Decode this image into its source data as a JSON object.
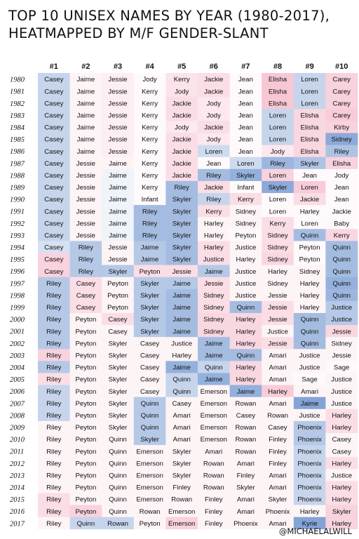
{
  "title_line1": "TOP 10 UNISEX NAMES BY YEAR (1980-2017),",
  "title_line2": "HEATMAPPED BY M/F GENDER-SLANT",
  "credit": "@MICHAELALWILL",
  "colors": {
    "male": "#5b86c9",
    "female": "#ee8ea9",
    "neutral": "#ffffff"
  },
  "chart_data": {
    "type": "heatmap",
    "columns": [
      "#1",
      "#2",
      "#3",
      "#4",
      "#5",
      "#6",
      "#7",
      "#8",
      "#9",
      "#10"
    ],
    "rows": [
      "1980",
      "1981",
      "1982",
      "1983",
      "1984",
      "1985",
      "1986",
      "1987",
      "1988",
      "1989",
      "1990",
      "1991",
      "1992",
      "1993",
      "1994",
      "1995",
      "1996",
      "1997",
      "1998",
      "1999",
      "2000",
      "2001",
      "2002",
      "2003",
      "2004",
      "2005",
      "2006",
      "2007",
      "2008",
      "2009",
      "2010",
      "2011",
      "2012",
      "2013",
      "2014",
      "2015",
      "2016",
      "2017"
    ],
    "cells": [
      [
        "Casey",
        "Jaime",
        "Jessie",
        "Jody",
        "Kerry",
        "Jackie",
        "Jean",
        "Elisha",
        "Loren",
        "Carey"
      ],
      [
        "Casey",
        "Jaime",
        "Jessie",
        "Kerry",
        "Jody",
        "Jackie",
        "Jean",
        "Elisha",
        "Loren",
        "Carey"
      ],
      [
        "Casey",
        "Jaime",
        "Jessie",
        "Kerry",
        "Jackie",
        "Jody",
        "Jean",
        "Elisha",
        "Loren",
        "Carey"
      ],
      [
        "Casey",
        "Jaime",
        "Jessie",
        "Kerry",
        "Jackie",
        "Jody",
        "Jean",
        "Loren",
        "Elisha",
        "Carey"
      ],
      [
        "Casey",
        "Jaime",
        "Jessie",
        "Kerry",
        "Jody",
        "Jackie",
        "Jean",
        "Loren",
        "Elisha",
        "Kirby"
      ],
      [
        "Casey",
        "Jaime",
        "Jessie",
        "Kerry",
        "Jackie",
        "Jody",
        "Jean",
        "Loren",
        "Elisha",
        "Sidney"
      ],
      [
        "Casey",
        "Jaime",
        "Jessie",
        "Kerry",
        "Jackie",
        "Loren",
        "Jean",
        "Jody",
        "Elisha",
        "Riley"
      ],
      [
        "Casey",
        "Jessie",
        "Jaime",
        "Kerry",
        "Jackie",
        "Jean",
        "Loren",
        "Riley",
        "Skyler",
        "Elisha"
      ],
      [
        "Casey",
        "Jessie",
        "Jaime",
        "Kerry",
        "Jackie",
        "Riley",
        "Skyler",
        "Loren",
        "Jean",
        "Jody"
      ],
      [
        "Casey",
        "Jessie",
        "Jaime",
        "Kerry",
        "Riley",
        "Jackie",
        "Infant",
        "Skyler",
        "Loren",
        "Jean"
      ],
      [
        "Casey",
        "Jessie",
        "Jaime",
        "Infant",
        "Skyler",
        "Riley",
        "Kerry",
        "Loren",
        "Jackie",
        "Jean"
      ],
      [
        "Casey",
        "Jessie",
        "Jaime",
        "Riley",
        "Skyler",
        "Kerry",
        "Sidney",
        "Loren",
        "Harley",
        "Jackie"
      ],
      [
        "Casey",
        "Jessie",
        "Jaime",
        "Riley",
        "Skyler",
        "Harley",
        "Sidney",
        "Kerry",
        "Loren",
        "Baby"
      ],
      [
        "Casey",
        "Jessie",
        "Jaime",
        "Riley",
        "Skyler",
        "Harley",
        "Peyton",
        "Sidney",
        "Quinn",
        "Kerry"
      ],
      [
        "Casey",
        "Riley",
        "Jessie",
        "Jaime",
        "Skyler",
        "Harley",
        "Justice",
        "Sidney",
        "Peyton",
        "Quinn"
      ],
      [
        "Casey",
        "Riley",
        "Jessie",
        "Jaime",
        "Skyler",
        "Justice",
        "Harley",
        "Sidney",
        "Peyton",
        "Quinn"
      ],
      [
        "Casey",
        "Riley",
        "Skyler",
        "Peyton",
        "Jessie",
        "Jaime",
        "Justice",
        "Harley",
        "Sidney",
        "Quinn"
      ],
      [
        "Riley",
        "Casey",
        "Peyton",
        "Skyler",
        "Jaime",
        "Jessie",
        "Justice",
        "Sidney",
        "Harley",
        "Quinn"
      ],
      [
        "Riley",
        "Casey",
        "Peyton",
        "Skyler",
        "Jaime",
        "Sidney",
        "Justice",
        "Jessie",
        "Harley",
        "Quinn"
      ],
      [
        "Riley",
        "Casey",
        "Peyton",
        "Skyler",
        "Jaime",
        "Sidney",
        "Quinn",
        "Jessie",
        "Harley",
        "Justice"
      ],
      [
        "Riley",
        "Peyton",
        "Casey",
        "Skyler",
        "Jaime",
        "Sidney",
        "Harley",
        "Jessie",
        "Quinn",
        "Justice"
      ],
      [
        "Riley",
        "Peyton",
        "Casey",
        "Skyler",
        "Jaime",
        "Sidney",
        "Harley",
        "Justice",
        "Quinn",
        "Jessie"
      ],
      [
        "Riley",
        "Peyton",
        "Skyler",
        "Casey",
        "Justice",
        "Jaime",
        "Harley",
        "Jessie",
        "Quinn",
        "Sidney"
      ],
      [
        "Riley",
        "Peyton",
        "Skyler",
        "Casey",
        "Harley",
        "Jaime",
        "Quinn",
        "Amari",
        "Justice",
        "Jessie"
      ],
      [
        "Riley",
        "Peyton",
        "Skyler",
        "Casey",
        "Jaime",
        "Quinn",
        "Harley",
        "Amari",
        "Justice",
        "Sage"
      ],
      [
        "Riley",
        "Peyton",
        "Skyler",
        "Casey",
        "Quinn",
        "Jaime",
        "Harley",
        "Amari",
        "Sage",
        "Justice"
      ],
      [
        "Riley",
        "Peyton",
        "Skyler",
        "Casey",
        "Quinn",
        "Emerson",
        "Jaime",
        "Harley",
        "Amari",
        "Justice"
      ],
      [
        "Riley",
        "Peyton",
        "Skyler",
        "Quinn",
        "Casey",
        "Emerson",
        "Rowan",
        "Amari",
        "Jaime",
        "Justice"
      ],
      [
        "Riley",
        "Peyton",
        "Skyler",
        "Quinn",
        "Amari",
        "Emerson",
        "Casey",
        "Rowan",
        "Justice",
        "Harley"
      ],
      [
        "Riley",
        "Peyton",
        "Skyler",
        "Quinn",
        "Amari",
        "Emerson",
        "Rowan",
        "Casey",
        "Phoenix",
        "Harley"
      ],
      [
        "Riley",
        "Peyton",
        "Quinn",
        "Skyler",
        "Amari",
        "Emerson",
        "Rowan",
        "Finley",
        "Phoenix",
        "Casey"
      ],
      [
        "Riley",
        "Peyton",
        "Quinn",
        "Emerson",
        "Skyler",
        "Amari",
        "Rowan",
        "Finley",
        "Phoenix",
        "Casey"
      ],
      [
        "Riley",
        "Peyton",
        "Quinn",
        "Emerson",
        "Skyler",
        "Rowan",
        "Amari",
        "Finley",
        "Phoenix",
        "Harley"
      ],
      [
        "Riley",
        "Peyton",
        "Quinn",
        "Emerson",
        "Skyler",
        "Rowan",
        "Finley",
        "Amari",
        "Phoenix",
        "Justice"
      ],
      [
        "Riley",
        "Peyton",
        "Quinn",
        "Emerson",
        "Finley",
        "Rowan",
        "Skyler",
        "Amari",
        "Phoenix",
        "Harley"
      ],
      [
        "Riley",
        "Peyton",
        "Quinn",
        "Emerson",
        "Rowan",
        "Finley",
        "Amari",
        "Skyler",
        "Phoenix",
        "Harley"
      ],
      [
        "Riley",
        "Peyton",
        "Quinn",
        "Rowan",
        "Emerson",
        "Finley",
        "Amari",
        "Phoenix",
        "Harley",
        "Skyler"
      ],
      [
        "Riley",
        "Quinn",
        "Rowan",
        "Peyton",
        "Emerson",
        "Finley",
        "Phoenix",
        "Amari",
        "Kyrie",
        "Harley"
      ]
    ],
    "slant": [
      [
        -0.35,
        0.1,
        0.15,
        0.05,
        0.25,
        0.3,
        0.05,
        0.5,
        -0.35,
        0.4
      ],
      [
        -0.35,
        0.1,
        0.15,
        0.05,
        0.25,
        0.3,
        0.05,
        0.5,
        -0.35,
        0.4
      ],
      [
        -0.35,
        0.1,
        0.15,
        0.05,
        0.3,
        0.2,
        0.05,
        0.5,
        -0.35,
        0.4
      ],
      [
        -0.35,
        0.1,
        0.15,
        0.05,
        0.3,
        0.2,
        0.05,
        -0.35,
        0.35,
        0.45
      ],
      [
        -0.35,
        0.1,
        0.15,
        0.05,
        0.2,
        0.3,
        0.05,
        -0.35,
        0.35,
        0.4
      ],
      [
        -0.35,
        0.1,
        0.15,
        0.05,
        0.3,
        0.2,
        0.05,
        -0.35,
        0.35,
        -0.7
      ],
      [
        -0.35,
        0.1,
        0.15,
        0.05,
        0.3,
        -0.3,
        0.05,
        0.2,
        0.35,
        -0.5
      ],
      [
        -0.35,
        0.1,
        0.1,
        0.05,
        0.3,
        0.05,
        -0.3,
        -0.6,
        -0.5,
        0.4
      ],
      [
        -0.35,
        0.1,
        -0.1,
        0.05,
        0.3,
        -0.55,
        -0.65,
        0.4,
        0.05,
        0.05
      ],
      [
        -0.35,
        0.1,
        -0.1,
        0.05,
        -0.55,
        0.3,
        0.05,
        -0.7,
        0.45,
        0.05
      ],
      [
        -0.35,
        0.1,
        -0.1,
        0.05,
        -0.55,
        -0.35,
        0.3,
        0.05,
        0.3,
        0.05
      ],
      [
        -0.35,
        0.1,
        -0.1,
        -0.55,
        -0.55,
        0.3,
        0.1,
        0.05,
        0.05,
        0.05
      ],
      [
        -0.35,
        0.1,
        -0.1,
        -0.55,
        -0.55,
        0.1,
        0.1,
        0.3,
        0.05,
        0.05
      ],
      [
        -0.35,
        0.1,
        -0.1,
        -0.55,
        -0.55,
        0.1,
        0.05,
        0.3,
        -0.55,
        0.35
      ],
      [
        -0.25,
        -0.45,
        0.1,
        -0.45,
        -0.55,
        0.3,
        0.1,
        0.3,
        0.05,
        -0.55
      ],
      [
        0.4,
        -0.45,
        0.1,
        -0.45,
        -0.55,
        0.3,
        0.1,
        0.35,
        0.05,
        -0.55
      ],
      [
        0.4,
        -0.45,
        -0.45,
        0.3,
        0.3,
        -0.45,
        0.1,
        0.1,
        0.1,
        -0.55
      ],
      [
        -0.45,
        0.3,
        0.1,
        -0.45,
        -0.45,
        0.3,
        0.1,
        0.1,
        0.1,
        -0.65
      ],
      [
        -0.45,
        0.3,
        0.1,
        -0.45,
        -0.55,
        0.3,
        0.1,
        0.1,
        0.1,
        -0.6
      ],
      [
        -0.45,
        0.3,
        0.1,
        -0.45,
        -0.55,
        0.3,
        -0.55,
        0.3,
        0.1,
        -0.45
      ],
      [
        -0.45,
        0.1,
        0.3,
        -0.45,
        -0.55,
        0.35,
        0.35,
        0.3,
        -0.55,
        -0.45
      ],
      [
        -0.45,
        0.1,
        0.1,
        -0.45,
        -0.55,
        0.35,
        0.35,
        0.1,
        -0.55,
        0.35
      ],
      [
        -0.45,
        0.1,
        0.1,
        0.1,
        0.1,
        -0.55,
        0.35,
        0.3,
        -0.55,
        0.1
      ],
      [
        0.4,
        0.1,
        0.1,
        0.1,
        0.1,
        -0.55,
        -0.55,
        0.1,
        0.1,
        0.1
      ],
      [
        -0.45,
        0.1,
        0.1,
        0.1,
        -0.65,
        -0.35,
        0.35,
        0.1,
        0.1,
        0.05
      ],
      [
        0.3,
        0.1,
        0.1,
        0.1,
        -0.35,
        -0.65,
        0.35,
        0.1,
        0.05,
        0.1
      ],
      [
        -0.35,
        0.1,
        0.1,
        0.1,
        -0.35,
        0.1,
        -0.65,
        0.45,
        0.1,
        0.1
      ],
      [
        -0.35,
        0.1,
        0.1,
        -0.45,
        0.1,
        0.1,
        0.1,
        0.1,
        -0.75,
        0.1
      ],
      [
        -0.35,
        0.1,
        0.1,
        -0.45,
        0.1,
        0.1,
        0.1,
        0.1,
        0.1,
        0.3
      ],
      [
        0.1,
        0.1,
        0.1,
        -0.45,
        0.1,
        0.1,
        0.1,
        0.1,
        -0.45,
        0.3
      ],
      [
        0.1,
        0.1,
        0.1,
        -0.45,
        0.1,
        0.1,
        0.1,
        0.1,
        -0.45,
        0.1
      ],
      [
        0.1,
        0.1,
        0.1,
        0.1,
        0.1,
        0.1,
        0.1,
        0.1,
        -0.35,
        0.1
      ],
      [
        0.1,
        0.1,
        0.1,
        0.1,
        0.1,
        0.1,
        0.1,
        0.1,
        -0.35,
        0.3
      ],
      [
        0.1,
        0.1,
        0.1,
        0.1,
        0.1,
        0.1,
        0.1,
        0.1,
        -0.35,
        0.1
      ],
      [
        0.1,
        0.1,
        0.1,
        0.1,
        0.1,
        0.1,
        0.1,
        0.1,
        -0.35,
        0.3
      ],
      [
        0.3,
        0.1,
        0.1,
        0.1,
        0.1,
        0.1,
        0.1,
        0.1,
        -0.35,
        0.3
      ],
      [
        0.3,
        0.4,
        0.1,
        0.1,
        0.1,
        0.1,
        0.1,
        0.1,
        0.1,
        0.4
      ],
      [
        0.1,
        -0.35,
        -0.35,
        0.1,
        0.4,
        0.1,
        0.1,
        0.1,
        -0.75,
        0.4
      ]
    ]
  }
}
